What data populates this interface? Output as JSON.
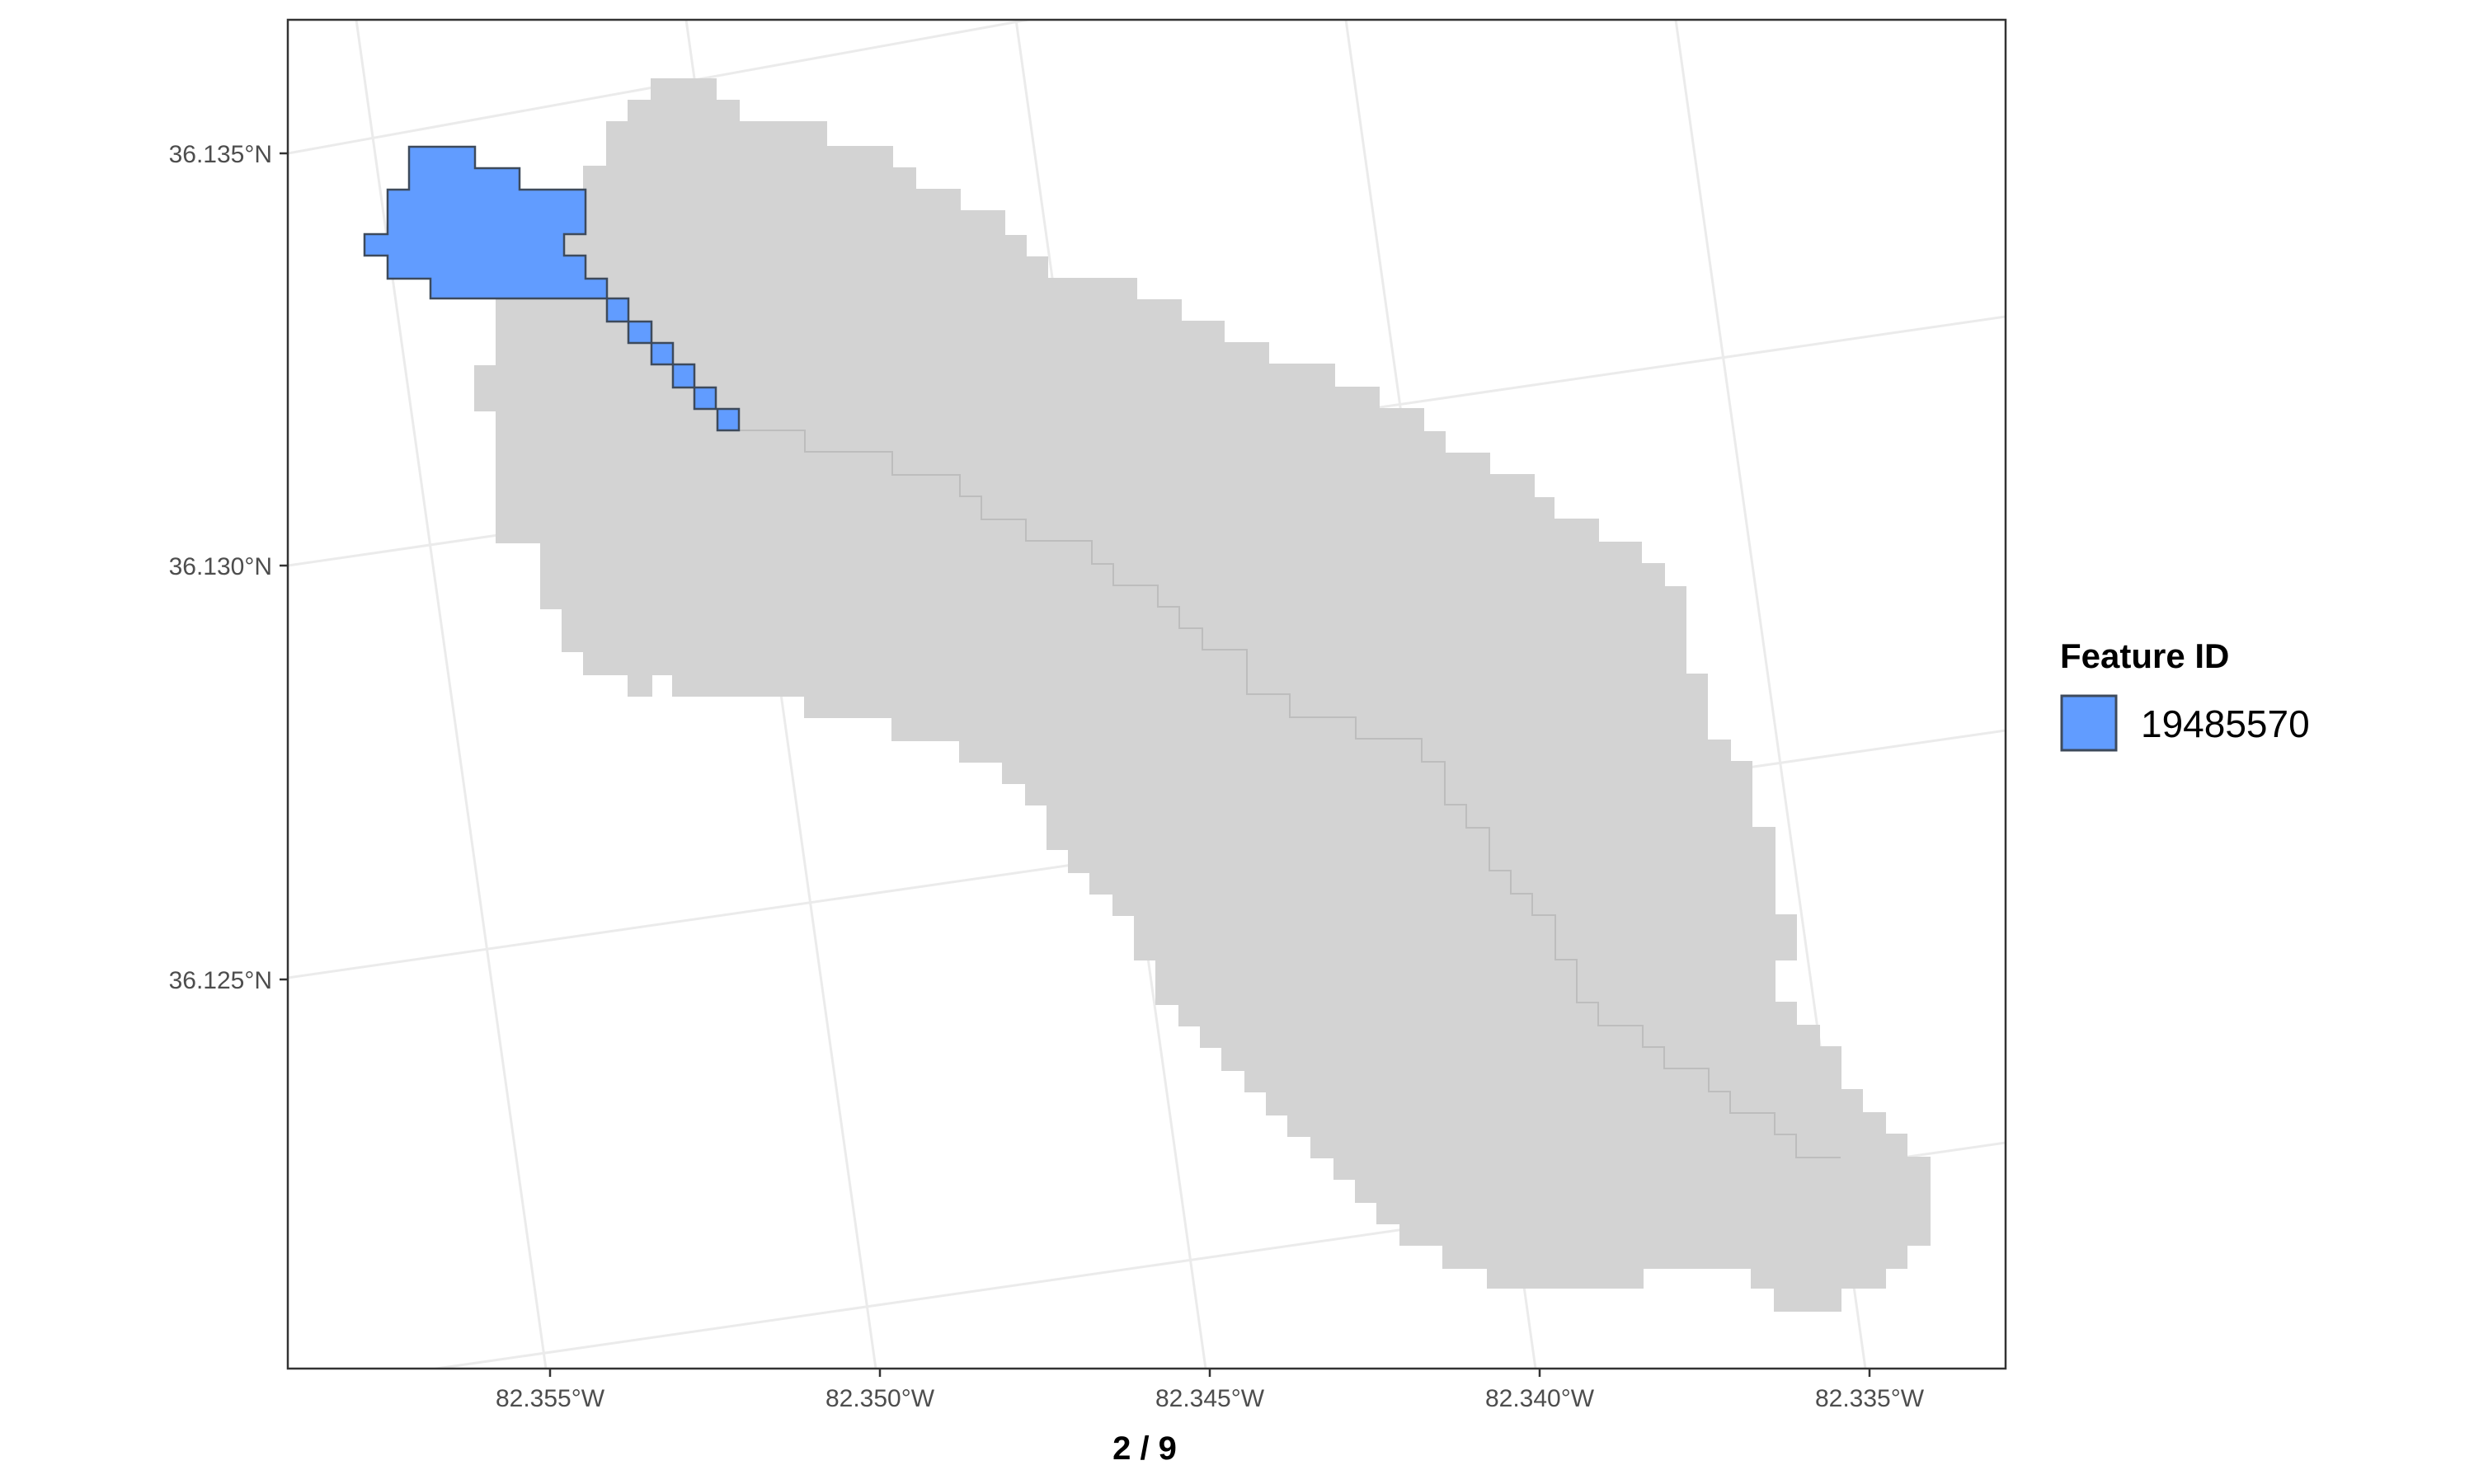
{
  "map": {
    "x_axis_title": "2 / 9",
    "y_ticks": [
      "36.135°N",
      "36.130°N",
      "36.125°N"
    ],
    "x_ticks": [
      "82.355°W",
      "82.350°W",
      "82.345°W",
      "82.340°W",
      "82.335°W"
    ],
    "legend": {
      "title": "Feature ID",
      "items": [
        {
          "label": "19485570",
          "color": "#619cff"
        }
      ]
    },
    "colors": {
      "basin_fill": "#d3d3d3",
      "highlight_fill": "#619cff",
      "graticule": "#ebebeb",
      "panel_border": "#333333"
    }
  }
}
